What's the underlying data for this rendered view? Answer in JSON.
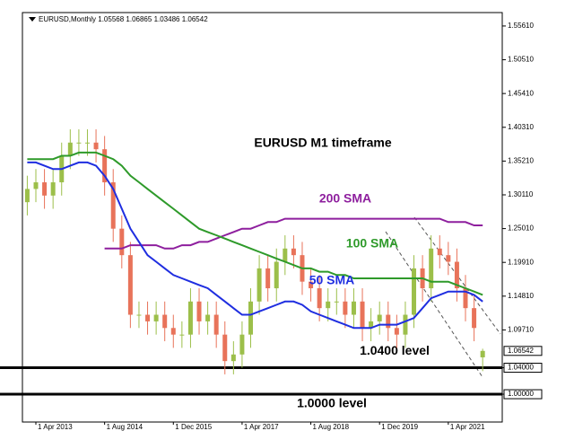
{
  "chart_data": {
    "type": "candlestick",
    "title": "EURUSD,Monthly",
    "categories": [
      null,
      "1 Apr 2013",
      null,
      null,
      null,
      null,
      null,
      null,
      null,
      "1 Aug 2014",
      null,
      null,
      null,
      null,
      null,
      null,
      null,
      "1 Dec 2015",
      null,
      null,
      null,
      null,
      null,
      null,
      null,
      "1 Apr 2017",
      null,
      null,
      null,
      null,
      null,
      null,
      null,
      "1 Aug 2018",
      null,
      null,
      null,
      null,
      null,
      null,
      null,
      "1 Dec 2019",
      null,
      null,
      null,
      null,
      null,
      null,
      null,
      "1 Apr 2021",
      null,
      null,
      null,
      null
    ],
    "open": [
      1.29,
      1.31,
      1.32,
      1.3,
      1.32,
      1.36,
      1.38,
      1.38,
      1.38,
      1.37,
      1.32,
      1.25,
      1.21,
      1.12,
      1.12,
      1.11,
      1.12,
      1.1,
      1.09,
      1.09,
      1.14,
      1.11,
      1.12,
      1.09,
      1.05,
      1.06,
      1.09,
      1.14,
      1.19,
      1.16,
      1.2,
      1.22,
      1.21,
      1.17,
      1.16,
      1.13,
      1.14,
      1.14,
      1.12,
      1.14,
      1.1,
      1.11,
      1.12,
      1.1,
      1.09,
      1.12,
      1.19,
      1.16,
      1.22,
      1.21,
      1.2,
      1.16,
      1.13,
      1.05568
    ],
    "high": [
      1.33,
      1.34,
      1.34,
      1.34,
      1.38,
      1.4,
      1.4,
      1.4,
      1.4,
      1.39,
      1.34,
      1.27,
      1.23,
      1.14,
      1.14,
      1.14,
      1.14,
      1.12,
      1.11,
      1.16,
      1.16,
      1.14,
      1.14,
      1.11,
      1.08,
      1.11,
      1.16,
      1.21,
      1.21,
      1.22,
      1.24,
      1.24,
      1.23,
      1.19,
      1.18,
      1.16,
      1.16,
      1.16,
      1.16,
      1.16,
      1.13,
      1.14,
      1.14,
      1.12,
      1.14,
      1.21,
      1.21,
      1.24,
      1.24,
      1.23,
      1.22,
      1.18,
      1.15,
      1.06865
    ],
    "low": [
      1.27,
      1.29,
      1.28,
      1.28,
      1.3,
      1.34,
      1.36,
      1.36,
      1.35,
      1.3,
      1.23,
      1.19,
      1.1,
      1.1,
      1.09,
      1.09,
      1.08,
      1.07,
      1.07,
      1.07,
      1.09,
      1.09,
      1.07,
      1.03,
      1.03,
      1.04,
      1.07,
      1.12,
      1.14,
      1.14,
      1.18,
      1.19,
      1.15,
      1.14,
      1.11,
      1.11,
      1.12,
      1.1,
      1.1,
      1.08,
      1.08,
      1.09,
      1.08,
      1.07,
      1.07,
      1.1,
      1.14,
      1.14,
      1.19,
      1.18,
      1.14,
      1.11,
      1.08,
      1.03486
    ],
    "close": [
      1.31,
      1.32,
      1.3,
      1.32,
      1.36,
      1.38,
      1.38,
      1.38,
      1.37,
      1.32,
      1.25,
      1.21,
      1.12,
      1.12,
      1.11,
      1.12,
      1.1,
      1.09,
      1.09,
      1.14,
      1.11,
      1.12,
      1.09,
      1.05,
      1.06,
      1.09,
      1.14,
      1.19,
      1.16,
      1.2,
      1.22,
      1.21,
      1.17,
      1.16,
      1.13,
      1.14,
      1.14,
      1.12,
      1.14,
      1.1,
      1.11,
      1.12,
      1.1,
      1.09,
      1.12,
      1.19,
      1.16,
      1.22,
      1.21,
      1.2,
      1.16,
      1.13,
      1.1,
      1.06542
    ],
    "up_color": "#9cbf4a",
    "down_color": "#e8735a",
    "series": [
      {
        "name": "200 SMA",
        "color": "#8e1f9e",
        "values": [
          null,
          null,
          null,
          null,
          null,
          null,
          null,
          null,
          null,
          1.22,
          1.22,
          1.22,
          1.225,
          1.225,
          1.225,
          1.225,
          1.22,
          1.22,
          1.225,
          1.225,
          1.23,
          1.23,
          1.235,
          1.24,
          1.245,
          1.25,
          1.25,
          1.255,
          1.26,
          1.26,
          1.265,
          1.265,
          1.265,
          1.265,
          1.265,
          1.265,
          1.265,
          1.265,
          1.265,
          1.265,
          1.265,
          1.265,
          1.265,
          1.265,
          1.265,
          1.265,
          1.265,
          1.265,
          1.265,
          1.26,
          1.26,
          1.26,
          1.255,
          1.255
        ]
      },
      {
        "name": "100 SMA",
        "color": "#2e9a2a",
        "values": [
          1.355,
          1.355,
          1.355,
          1.355,
          1.36,
          1.36,
          1.365,
          1.365,
          1.365,
          1.36,
          1.355,
          1.345,
          1.33,
          1.32,
          1.31,
          1.3,
          1.29,
          1.28,
          1.27,
          1.26,
          1.25,
          1.245,
          1.24,
          1.235,
          1.23,
          1.225,
          1.22,
          1.215,
          1.21,
          1.205,
          1.2,
          1.195,
          1.19,
          1.19,
          1.185,
          1.185,
          1.18,
          1.18,
          1.175,
          1.175,
          1.175,
          1.175,
          1.175,
          1.175,
          1.175,
          1.175,
          1.175,
          1.17,
          1.17,
          1.17,
          1.165,
          1.16,
          1.155,
          1.15
        ]
      },
      {
        "name": "50 SMA",
        "color": "#1f2ee0",
        "values": [
          1.35,
          1.35,
          1.345,
          1.34,
          1.34,
          1.345,
          1.35,
          1.35,
          1.345,
          1.33,
          1.31,
          1.28,
          1.25,
          1.23,
          1.21,
          1.2,
          1.19,
          1.18,
          1.175,
          1.17,
          1.165,
          1.16,
          1.15,
          1.14,
          1.13,
          1.12,
          1.12,
          1.125,
          1.13,
          1.135,
          1.14,
          1.14,
          1.135,
          1.125,
          1.12,
          1.115,
          1.11,
          1.105,
          1.1,
          1.1,
          1.1,
          1.105,
          1.105,
          1.105,
          1.11,
          1.115,
          1.13,
          1.145,
          1.15,
          1.155,
          1.155,
          1.155,
          1.15,
          1.14
        ]
      }
    ],
    "ylim": [
      0.958,
      1.575
    ],
    "yticks": [
      {
        "value": 1.5561,
        "label": "1.55610"
      },
      {
        "value": 1.5051,
        "label": "1.50510"
      },
      {
        "value": 1.4541,
        "label": "1.45410"
      },
      {
        "value": 1.4031,
        "label": "1.40310"
      },
      {
        "value": 1.3521,
        "label": "1.35210"
      },
      {
        "value": 1.3011,
        "label": "1.30110"
      },
      {
        "value": 1.2501,
        "label": "1.25010"
      },
      {
        "value": 1.1991,
        "label": "1.19910"
      },
      {
        "value": 1.1481,
        "label": "1.14810"
      },
      {
        "value": 1.0971,
        "label": "1.09710"
      },
      {
        "value": 1.04,
        "label": "1.04000"
      },
      {
        "value": 1,
        "label": "1.00000"
      }
    ],
    "levels": [
      {
        "value": 1.04,
        "label": "1.0400 level"
      },
      {
        "value": 1,
        "label": "1.0000 level"
      }
    ],
    "annotations": [
      "EURUSD M1 timeframe"
    ]
  }
}
